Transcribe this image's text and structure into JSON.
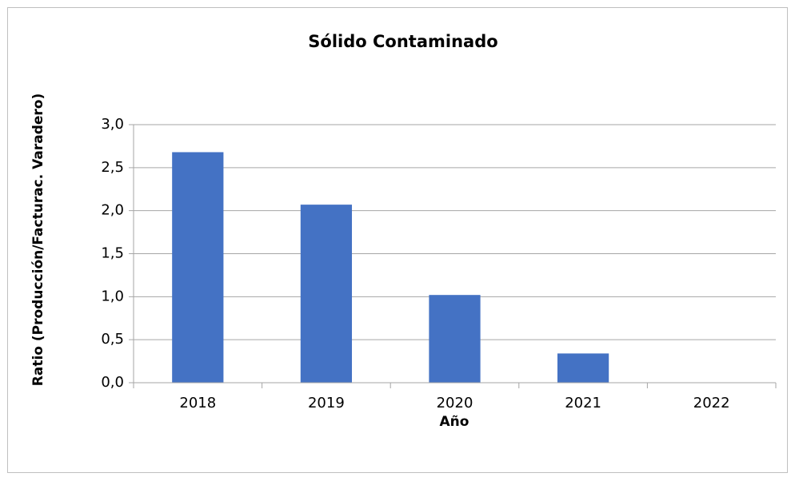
{
  "chart_data": {
    "type": "bar",
    "title": "Sólido Contaminado",
    "x_label": "Año",
    "y_label": "Ratio (Producción/Facturac. Varadero)",
    "categories": [
      "2018",
      "2019",
      "2020",
      "2021",
      "2022"
    ],
    "values": [
      2.68,
      2.07,
      1.02,
      0.34,
      0
    ],
    "color": "#4472c4",
    "ylim": [
      0,
      3
    ],
    "yticks": [
      {
        "value": 0,
        "label": "0,0"
      },
      {
        "value": 0.5,
        "label": "0,5"
      },
      {
        "value": 1,
        "label": "1,0"
      },
      {
        "value": 1.5,
        "label": "1,5"
      },
      {
        "value": 2,
        "label": "2,0"
      },
      {
        "value": 2.5,
        "label": "2,5"
      },
      {
        "value": 3,
        "label": "3,0"
      }
    ],
    "grid": true
  }
}
